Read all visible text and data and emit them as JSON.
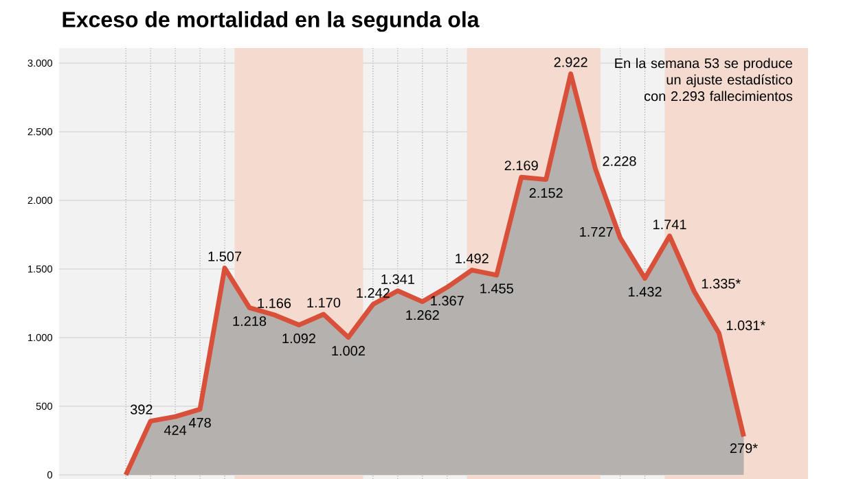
{
  "chart_data": {
    "type": "area",
    "title": "Exceso de mortalidad en la segunda ola",
    "categories": [
      null,
      null,
      null,
      null,
      null,
      null,
      null,
      null,
      null,
      null,
      null,
      null,
      null,
      null,
      null,
      null,
      null,
      null,
      null,
      null,
      null,
      null,
      null,
      null,
      null,
      null
    ],
    "series": [
      {
        "color": "#d9503a",
        "values": [
          0,
          392,
          424,
          478,
          1507,
          1218,
          1166,
          1092,
          1170,
          1002,
          1242,
          1341,
          1262,
          1367,
          1492,
          1455,
          2169,
          2152,
          2922,
          2228,
          1727,
          1432,
          1741,
          1335,
          1031,
          279
        ],
        "value_labels": [
          null,
          "392",
          "424",
          "478",
          "1.507",
          "1.218",
          "1.166",
          "1.092",
          "1.170",
          "1.002",
          "1.242",
          "1.341",
          "1.262",
          "1.367",
          "1.492",
          "1.455",
          "2.169",
          "2.152",
          "2.922",
          "2.228",
          "1.727",
          "1.432",
          "1.741",
          "1.335*",
          "1.031*",
          "279*"
        ]
      }
    ],
    "ylim": [
      -30,
      3110
    ],
    "yticks": [
      {
        "value": 0,
        "label": "0"
      },
      {
        "value": 500,
        "label": "500"
      },
      {
        "value": 1000,
        "label": "1.000"
      },
      {
        "value": 1500,
        "label": "1.500"
      },
      {
        "value": 2000,
        "label": "2.000"
      },
      {
        "value": 2500,
        "label": "2.500"
      },
      {
        "value": 3000,
        "label": "3.000"
      }
    ],
    "annotations": [
      "En la semana 53 se produce un ajuste estadístico con 2.293 fallecimientos"
    ],
    "grid": true,
    "tick_labels": "y",
    "marker": "none",
    "line_style": "solid"
  }
}
